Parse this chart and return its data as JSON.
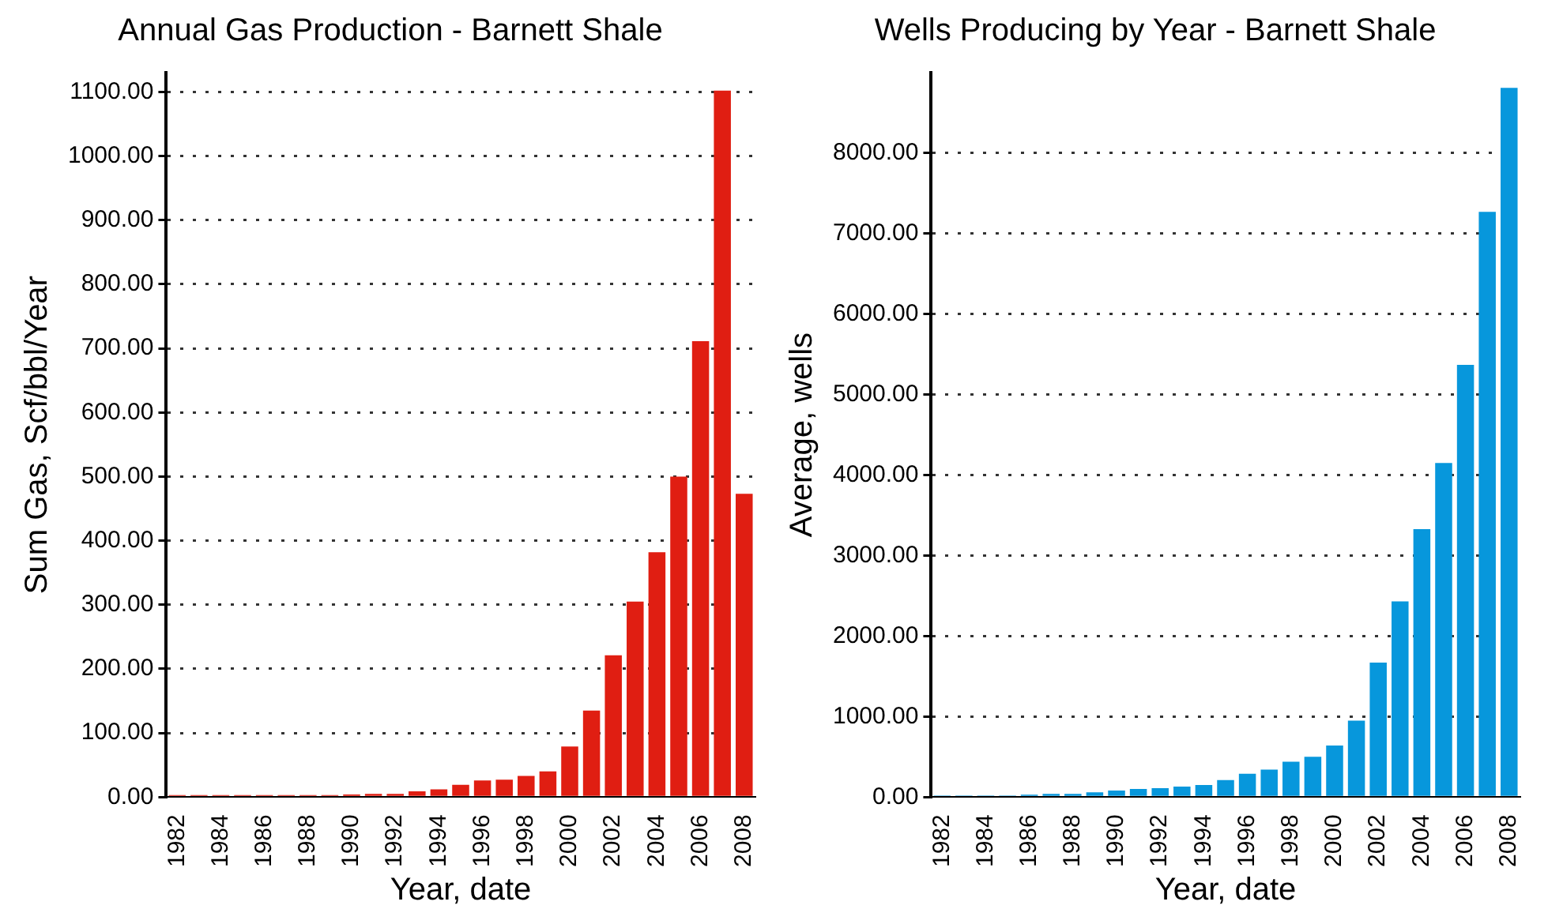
{
  "chart_data": [
    {
      "type": "bar",
      "title": "Annual Gas Production - Barnett Shale",
      "xlabel": "Year, date",
      "ylabel": "Sum Gas, Scf/bbl/Year",
      "categories": [
        "1982",
        null,
        "1984",
        null,
        "1986",
        null,
        "1988",
        null,
        "1990",
        null,
        "1992",
        null,
        "1994",
        null,
        "1996",
        null,
        "1998",
        null,
        "2000",
        null,
        "2002",
        null,
        "2004",
        null,
        "2006",
        null,
        "2008"
      ],
      "values": [
        3,
        3,
        3,
        3,
        3,
        3,
        3,
        3,
        4,
        5,
        5,
        9,
        12,
        19,
        26,
        27,
        33,
        40,
        79,
        135,
        221,
        305,
        382,
        500,
        711,
        1102,
        473
      ],
      "color": "#e01e12",
      "ylim": [
        0,
        1130
      ],
      "yticks": [
        {
          "value": 0,
          "label": "0.00"
        },
        {
          "value": 100,
          "label": "100.00"
        },
        {
          "value": 200,
          "label": "200.00"
        },
        {
          "value": 300,
          "label": "300.00"
        },
        {
          "value": 400,
          "label": "400.00"
        },
        {
          "value": 500,
          "label": "500.00"
        },
        {
          "value": 600,
          "label": "600.00"
        },
        {
          "value": 700,
          "label": "700.00"
        },
        {
          "value": 800,
          "label": "800.00"
        },
        {
          "value": 900,
          "label": "900.00"
        },
        {
          "value": 1000,
          "label": "1000.00"
        },
        {
          "value": 1100,
          "label": "1100.00"
        }
      ],
      "grid": "y"
    },
    {
      "type": "bar",
      "title": "Wells Producing by Year - Barnett Shale",
      "xlabel": "Year, date",
      "ylabel": "Average, wells",
      "categories": [
        "1982",
        null,
        "1984",
        null,
        "1986",
        null,
        "1988",
        null,
        "1990",
        null,
        "1992",
        null,
        "1994",
        null,
        "1996",
        null,
        "1998",
        null,
        "2000",
        null,
        "2002",
        null,
        "2004",
        null,
        "2006",
        null,
        "2008"
      ],
      "values": [
        20,
        20,
        20,
        20,
        30,
        40,
        40,
        60,
        80,
        100,
        110,
        130,
        150,
        210,
        290,
        340,
        440,
        500,
        640,
        950,
        1670,
        2430,
        3330,
        4150,
        5370,
        7270,
        8810
      ],
      "color": "#0797dc",
      "ylim": [
        0,
        9000
      ],
      "yticks": [
        {
          "value": 0,
          "label": "0.00"
        },
        {
          "value": 1000,
          "label": "1000.00"
        },
        {
          "value": 2000,
          "label": "2000.00"
        },
        {
          "value": 3000,
          "label": "3000.00"
        },
        {
          "value": 4000,
          "label": "4000.00"
        },
        {
          "value": 5000,
          "label": "5000.00"
        },
        {
          "value": 6000,
          "label": "6000.00"
        },
        {
          "value": 7000,
          "label": "7000.00"
        },
        {
          "value": 8000,
          "label": "8000.00"
        }
      ],
      "grid": "y"
    }
  ]
}
